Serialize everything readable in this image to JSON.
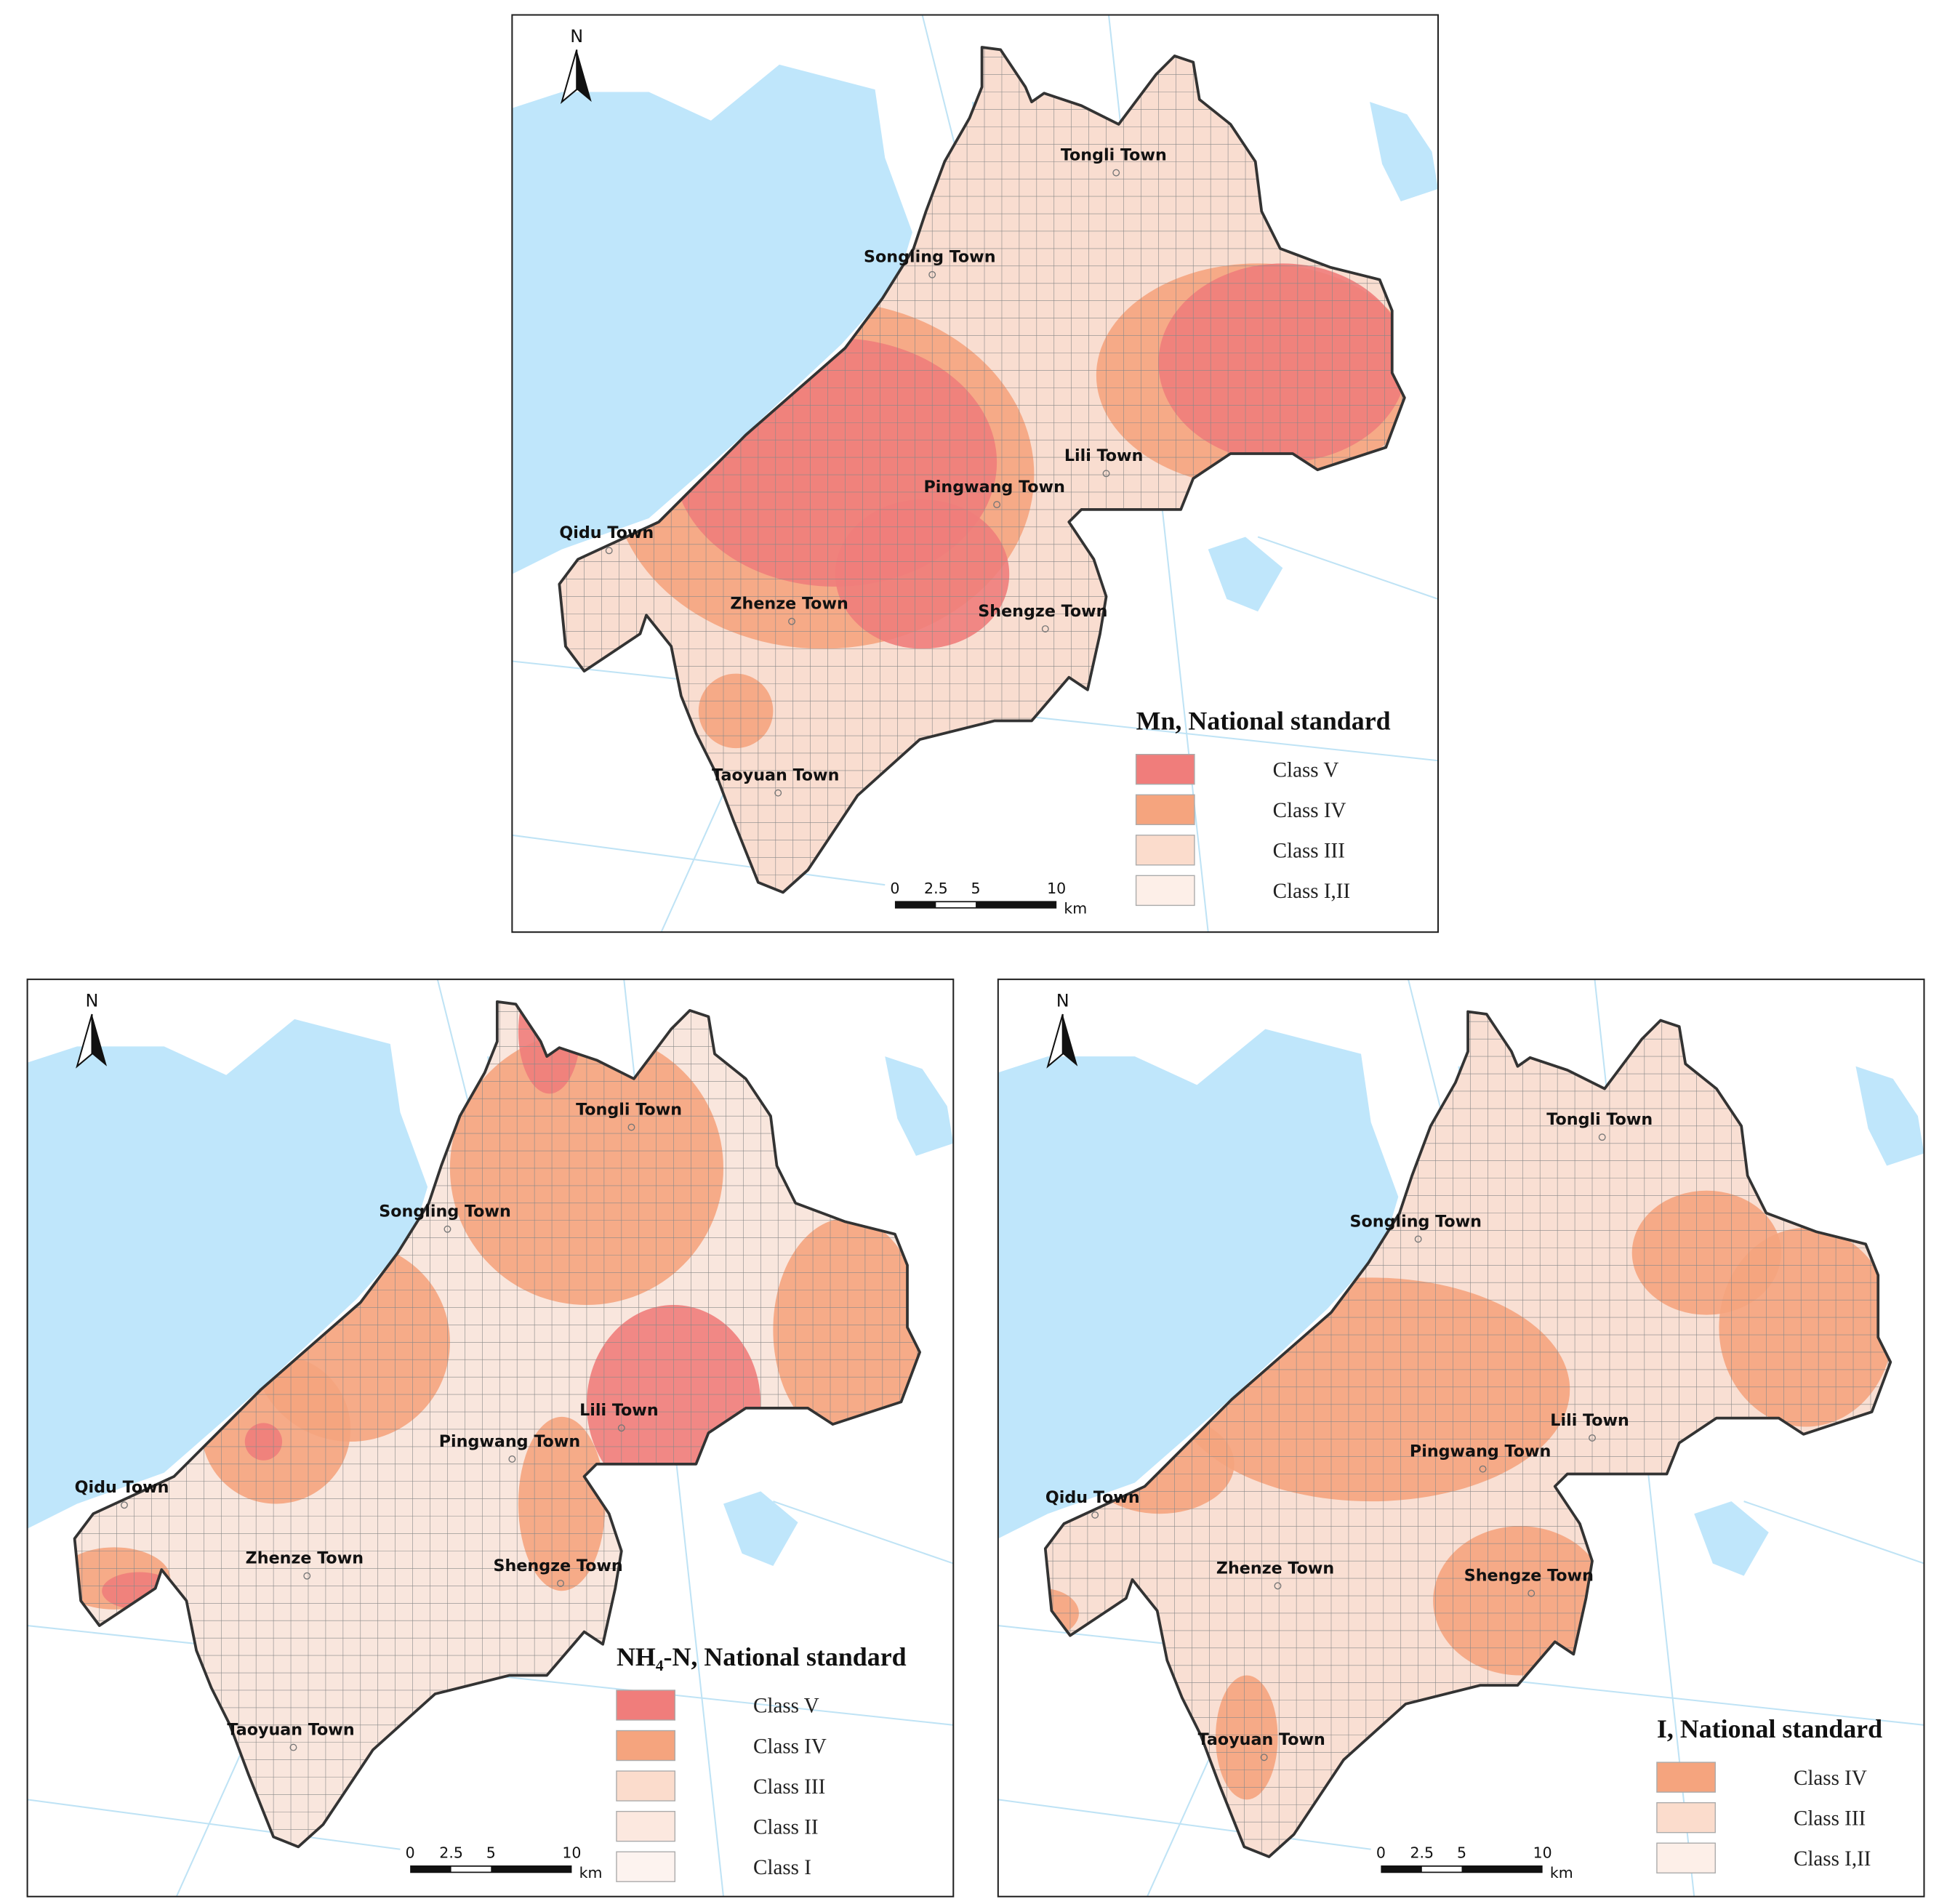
{
  "panels": [
    {
      "legend": {
        "title": "Mn, National standard",
        "classes": [
          {
            "label": "Class V",
            "color": "#f07d7b"
          },
          {
            "label": "Class IV",
            "color": "#f5a47e"
          },
          {
            "label": "Class III",
            "color": "#fbdccc"
          },
          {
            "label": "Class I,II",
            "color": "#fdefe8"
          }
        ]
      },
      "north": "N",
      "towns": [
        "Tongli Town",
        "Songling Town",
        "Lili Town",
        "Pingwang Town",
        "Qidu Town",
        "Zhenze Town",
        "Shengze Town",
        "Taoyuan Town"
      ],
      "scale": [
        "0",
        "2.5",
        "5",
        "10",
        "km"
      ]
    },
    {
      "legend": {
        "title": "NH₄-N, National standard",
        "classes": [
          {
            "label": "Class V",
            "color": "#f07d7b"
          },
          {
            "label": "Class IV",
            "color": "#f5a47e"
          },
          {
            "label": "Class III",
            "color": "#fbdccc"
          },
          {
            "label": "Class II",
            "color": "#fce8df"
          },
          {
            "label": "Class I",
            "color": "#fdf3ef"
          }
        ]
      },
      "north": "N",
      "towns": [
        "Tongli Town",
        "Songling Town",
        "Lili Town",
        "Pingwang Town",
        "Qidu Town",
        "Zhenze Town",
        "Shengze Town",
        "Taoyuan Town"
      ],
      "scale": [
        "0",
        "2.5",
        "5",
        "10",
        "km"
      ]
    },
    {
      "legend": {
        "title": "I, National standard",
        "classes": [
          {
            "label": "Class IV",
            "color": "#f5a47e"
          },
          {
            "label": "Class III",
            "color": "#fbdccc"
          },
          {
            "label": "Class I,II",
            "color": "#fdefe8"
          }
        ]
      },
      "north": "N",
      "towns": [
        "Tongli Town",
        "Songling Town",
        "Lili Town",
        "Pingwang Town",
        "Qidu Town",
        "Zhenze Town",
        "Shengze Town",
        "Taoyuan Town"
      ],
      "scale": [
        "0",
        "2.5",
        "5",
        "10",
        "km"
      ]
    }
  ]
}
